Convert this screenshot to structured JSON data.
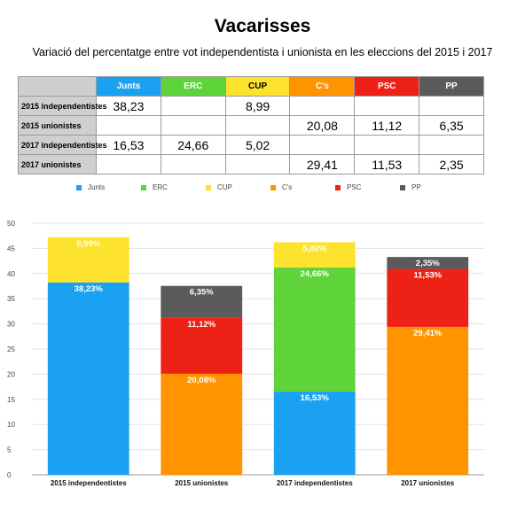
{
  "title": "Vacarisses",
  "subtitle": "Variació del percentatge entre vot independentista i unionista en les eleccions del 2015 i 2017",
  "colors": {
    "Junts": "#1ba1f2",
    "ERC": "#5fd43a",
    "CUP": "#fde22e",
    "C's": "#ff9400",
    "PSC": "#ed2115",
    "PP": "#5b5b5b"
  },
  "table": {
    "columns": [
      "Junts",
      "ERC",
      "CUP",
      "C's",
      "PSC",
      "PP"
    ],
    "rows": [
      {
        "label": "2015 independentistes",
        "cells": [
          "38,23",
          "",
          "8,99",
          "",
          "",
          ""
        ]
      },
      {
        "label": "2015 unionistes",
        "cells": [
          "",
          "",
          "",
          "20,08",
          "11,12",
          "6,35"
        ]
      },
      {
        "label": "2017 independentistes",
        "cells": [
          "16,53",
          "24,66",
          "5,02",
          "",
          "",
          ""
        ]
      },
      {
        "label": "2017 unionistes",
        "cells": [
          "",
          "",
          "",
          "29,41",
          "11,53",
          "2,35"
        ]
      }
    ]
  },
  "chart_data": {
    "type": "bar",
    "stacked": true,
    "categories": [
      "2015 independentistes",
      "2015 unionistes",
      "2017 independentistes",
      "2017 unionistes"
    ],
    "series": [
      {
        "name": "Junts",
        "values": [
          38.23,
          null,
          16.53,
          null
        ],
        "labels": [
          "38,23%",
          "",
          "16,53%",
          ""
        ]
      },
      {
        "name": "ERC",
        "values": [
          null,
          null,
          24.66,
          null
        ],
        "labels": [
          "",
          "",
          "24,66%",
          ""
        ]
      },
      {
        "name": "CUP",
        "values": [
          8.99,
          null,
          5.02,
          null
        ],
        "labels": [
          "8,99%",
          "",
          "5,02%",
          ""
        ]
      },
      {
        "name": "C's",
        "values": [
          null,
          20.08,
          null,
          29.41
        ],
        "labels": [
          "",
          "20,08%",
          "",
          "29,41%"
        ]
      },
      {
        "name": "PSC",
        "values": [
          null,
          11.12,
          null,
          11.53
        ],
        "labels": [
          "",
          "11,12%",
          "",
          "11,53%"
        ]
      },
      {
        "name": "PP",
        "values": [
          null,
          6.35,
          null,
          2.35
        ],
        "labels": [
          "",
          "6,35%",
          "",
          "2,35%"
        ]
      }
    ],
    "ylim": [
      0,
      50
    ],
    "yticks": [
      0,
      5,
      10,
      15,
      20,
      25,
      30,
      35,
      40,
      45,
      50
    ],
    "grid": true,
    "legend": "top"
  }
}
